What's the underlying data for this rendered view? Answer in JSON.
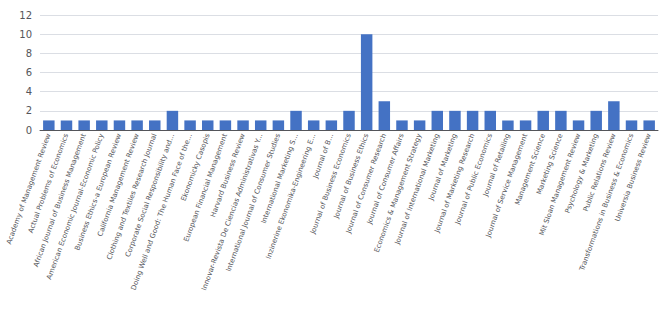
{
  "chart_data": {
    "type": "bar",
    "categories": [
      "Academy of Management Review",
      "Actual Problems of Economics",
      "African Journal of Business Management",
      "American Economic Journal-Economic Policy",
      "Business Ethics-a European Review",
      "California Management Review",
      "Clothing and Textiles Research Journal",
      "Corporate Social Responsibility and...",
      "Doing Well and Good: The Human Face of the...",
      "Ekonomicky Casopis",
      "European Financial Management",
      "Harvard Business Review",
      "Innovar-Revista De Ciencias Administrativas Y...",
      "International Journal of Consumer Studies",
      "International Marketing S...",
      "Inzinerine Ekonomika-Engineering E...",
      "Journal of B...",
      "Journal of Business Economics",
      "Journal of Business Ethics",
      "Journal of Consumer Research",
      "Journal of Consumer Affairs",
      "Economics & Management Strategy",
      "Journal of International Marketing",
      "Journal of Marketing",
      "Journal of Marketing Research",
      "Journal of Public Economics",
      "Journal of Retailing",
      "Journal of Service Management",
      "Management Science",
      "Marketing Science",
      "Mit Sloan Management Review",
      "Psychology & Marketing",
      "Public Relations Review",
      "Transformations in Business & Economics",
      "Universia Business Review"
    ],
    "values": [
      1,
      1,
      1,
      1,
      1,
      1,
      1,
      2,
      1,
      1,
      1,
      1,
      1,
      1,
      2,
      1,
      1,
      2,
      10,
      3,
      1,
      1,
      2,
      2,
      2,
      2,
      1,
      1,
      2,
      2,
      1,
      2,
      3,
      1,
      1
    ],
    "color": "#4472C4",
    "ylim": [
      0,
      12
    ],
    "yticks": [
      0,
      2,
      4,
      6,
      8,
      10,
      12
    ],
    "grid": true
  }
}
